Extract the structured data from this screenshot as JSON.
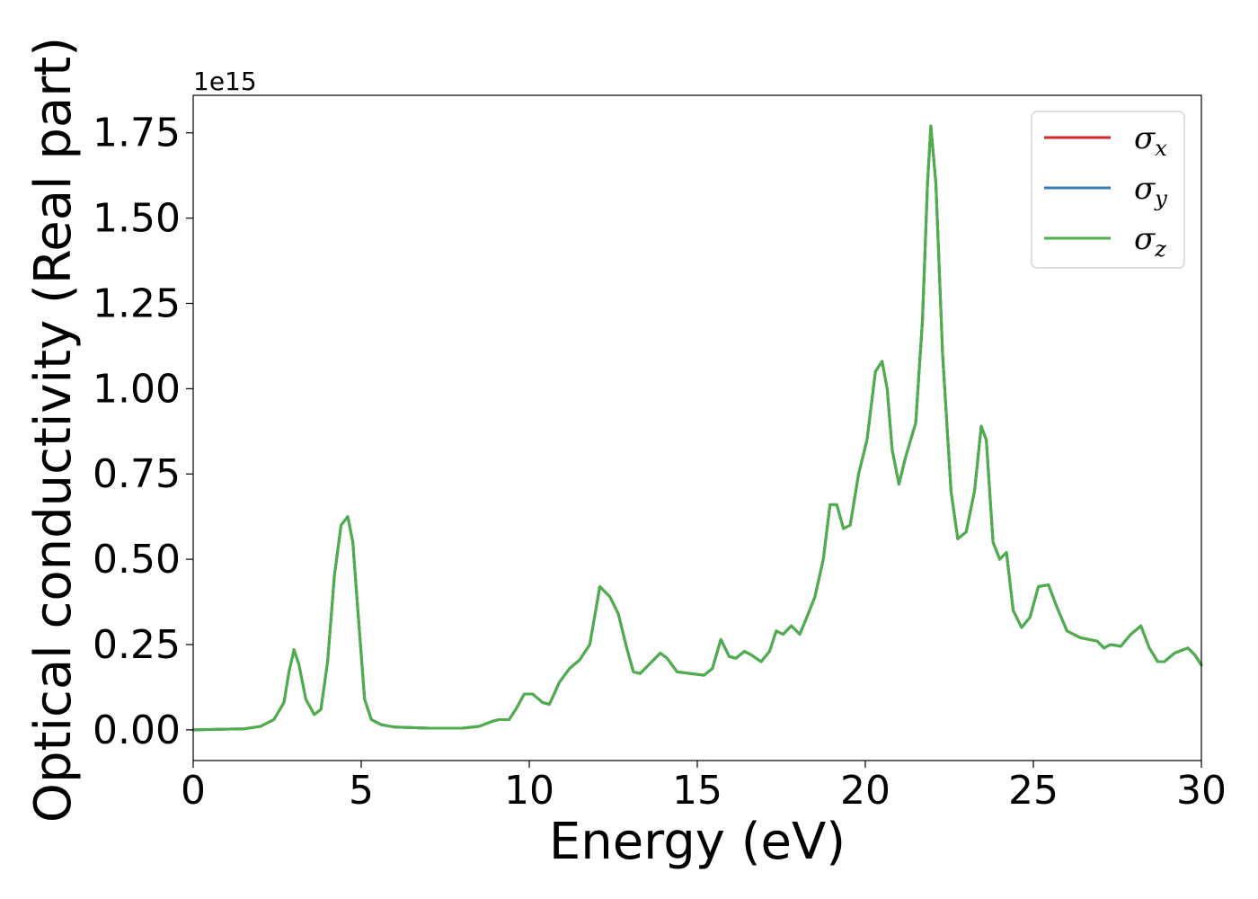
{
  "chart_data": {
    "type": "line",
    "xlabel": "Energy (eV)",
    "ylabel": "Optical conductivity (Real part)",
    "y_offset_label": "1e15",
    "xlim": [
      0,
      30
    ],
    "ylim": [
      -0.09,
      1.86
    ],
    "xticks": [
      0,
      5,
      10,
      15,
      20,
      25,
      30
    ],
    "xtick_labels": [
      "0",
      "5",
      "10",
      "15",
      "20",
      "25",
      "30"
    ],
    "yticks": [
      0.0,
      0.25,
      0.5,
      0.75,
      1.0,
      1.25,
      1.5,
      1.75
    ],
    "ytick_labels": [
      "0.00",
      "0.25",
      "0.50",
      "0.75",
      "1.00",
      "1.25",
      "1.50",
      "1.75"
    ],
    "grid": false,
    "legend_position": "top-right",
    "x": [
      0,
      1.5,
      2.0,
      2.4,
      2.7,
      2.85,
      3.0,
      3.15,
      3.35,
      3.6,
      3.8,
      4.0,
      4.2,
      4.4,
      4.6,
      4.75,
      4.9,
      5.1,
      5.3,
      5.6,
      6.0,
      7.0,
      8.0,
      8.5,
      8.9,
      9.1,
      9.4,
      9.6,
      9.85,
      10.1,
      10.4,
      10.6,
      10.9,
      11.2,
      11.5,
      11.8,
      12.1,
      12.4,
      12.65,
      12.9,
      13.1,
      13.3,
      13.6,
      13.9,
      14.1,
      14.4,
      14.8,
      15.2,
      15.45,
      15.7,
      15.95,
      16.15,
      16.4,
      16.6,
      16.9,
      17.15,
      17.35,
      17.55,
      17.8,
      18.05,
      18.3,
      18.5,
      18.75,
      18.95,
      19.15,
      19.35,
      19.55,
      19.8,
      20.05,
      20.3,
      20.5,
      20.65,
      20.8,
      21.0,
      21.2,
      21.5,
      21.7,
      21.85,
      21.95,
      22.1,
      22.3,
      22.55,
      22.75,
      23.0,
      23.25,
      23.45,
      23.6,
      23.8,
      24.0,
      24.2,
      24.4,
      24.65,
      24.9,
      25.15,
      25.45,
      25.7,
      26.0,
      26.4,
      26.9,
      27.1,
      27.3,
      27.6,
      27.9,
      28.2,
      28.45,
      28.7,
      28.9,
      29.2,
      29.6,
      29.8,
      30.0
    ],
    "series": [
      {
        "name": "σ_x",
        "color": "#d62728",
        "values": [
          0.0,
          0.003,
          0.01,
          0.03,
          0.08,
          0.17,
          0.235,
          0.19,
          0.09,
          0.045,
          0.06,
          0.2,
          0.45,
          0.6,
          0.625,
          0.55,
          0.35,
          0.09,
          0.03,
          0.015,
          0.008,
          0.005,
          0.005,
          0.01,
          0.025,
          0.03,
          0.03,
          0.06,
          0.105,
          0.105,
          0.08,
          0.075,
          0.14,
          0.18,
          0.205,
          0.25,
          0.42,
          0.39,
          0.34,
          0.24,
          0.17,
          0.165,
          0.195,
          0.225,
          0.21,
          0.17,
          0.165,
          0.16,
          0.18,
          0.265,
          0.215,
          0.21,
          0.23,
          0.22,
          0.2,
          0.23,
          0.29,
          0.28,
          0.305,
          0.28,
          0.34,
          0.39,
          0.5,
          0.66,
          0.66,
          0.59,
          0.6,
          0.75,
          0.85,
          1.05,
          1.08,
          1.0,
          0.82,
          0.72,
          0.8,
          0.9,
          1.2,
          1.6,
          1.77,
          1.6,
          1.1,
          0.7,
          0.56,
          0.58,
          0.7,
          0.89,
          0.85,
          0.55,
          0.5,
          0.52,
          0.35,
          0.3,
          0.33,
          0.42,
          0.425,
          0.36,
          0.29,
          0.27,
          0.26,
          0.24,
          0.25,
          0.245,
          0.28,
          0.305,
          0.24,
          0.2,
          0.2,
          0.225,
          0.24,
          0.22,
          0.19
        ]
      },
      {
        "name": "σ_y",
        "color": "#377eb8",
        "values": [
          0.0,
          0.003,
          0.01,
          0.03,
          0.08,
          0.17,
          0.235,
          0.19,
          0.09,
          0.045,
          0.06,
          0.2,
          0.45,
          0.6,
          0.625,
          0.55,
          0.35,
          0.09,
          0.03,
          0.015,
          0.008,
          0.005,
          0.005,
          0.01,
          0.025,
          0.03,
          0.03,
          0.06,
          0.105,
          0.105,
          0.08,
          0.075,
          0.14,
          0.18,
          0.205,
          0.25,
          0.42,
          0.39,
          0.34,
          0.24,
          0.17,
          0.165,
          0.195,
          0.225,
          0.21,
          0.17,
          0.165,
          0.16,
          0.18,
          0.265,
          0.215,
          0.21,
          0.23,
          0.22,
          0.2,
          0.23,
          0.29,
          0.28,
          0.305,
          0.28,
          0.34,
          0.39,
          0.5,
          0.66,
          0.66,
          0.59,
          0.6,
          0.75,
          0.85,
          1.05,
          1.08,
          1.0,
          0.82,
          0.72,
          0.8,
          0.9,
          1.2,
          1.6,
          1.77,
          1.6,
          1.1,
          0.7,
          0.56,
          0.58,
          0.7,
          0.89,
          0.85,
          0.55,
          0.5,
          0.52,
          0.35,
          0.3,
          0.33,
          0.42,
          0.425,
          0.36,
          0.29,
          0.27,
          0.26,
          0.24,
          0.25,
          0.245,
          0.28,
          0.305,
          0.24,
          0.2,
          0.2,
          0.225,
          0.24,
          0.22,
          0.19
        ]
      },
      {
        "name": "σ_z",
        "color": "#4daf4a",
        "values": [
          0.0,
          0.003,
          0.01,
          0.03,
          0.08,
          0.17,
          0.235,
          0.19,
          0.09,
          0.045,
          0.06,
          0.2,
          0.45,
          0.6,
          0.625,
          0.55,
          0.35,
          0.09,
          0.03,
          0.015,
          0.008,
          0.005,
          0.005,
          0.01,
          0.025,
          0.03,
          0.03,
          0.06,
          0.105,
          0.105,
          0.08,
          0.075,
          0.14,
          0.18,
          0.205,
          0.25,
          0.42,
          0.39,
          0.34,
          0.24,
          0.17,
          0.165,
          0.195,
          0.225,
          0.21,
          0.17,
          0.165,
          0.16,
          0.18,
          0.265,
          0.215,
          0.21,
          0.23,
          0.22,
          0.2,
          0.23,
          0.29,
          0.28,
          0.305,
          0.28,
          0.34,
          0.39,
          0.5,
          0.66,
          0.66,
          0.59,
          0.6,
          0.75,
          0.85,
          1.05,
          1.08,
          1.0,
          0.82,
          0.72,
          0.8,
          0.9,
          1.2,
          1.6,
          1.77,
          1.6,
          1.1,
          0.7,
          0.56,
          0.58,
          0.7,
          0.89,
          0.85,
          0.55,
          0.5,
          0.52,
          0.35,
          0.3,
          0.33,
          0.42,
          0.425,
          0.36,
          0.29,
          0.27,
          0.26,
          0.24,
          0.25,
          0.245,
          0.28,
          0.305,
          0.24,
          0.2,
          0.2,
          0.225,
          0.24,
          0.22,
          0.19
        ]
      }
    ],
    "legend": [
      {
        "symbol": "σ",
        "sub": "x",
        "color": "#d62728"
      },
      {
        "symbol": "σ",
        "sub": "y",
        "color": "#377eb8"
      },
      {
        "symbol": "σ",
        "sub": "z",
        "color": "#4daf4a"
      }
    ]
  }
}
